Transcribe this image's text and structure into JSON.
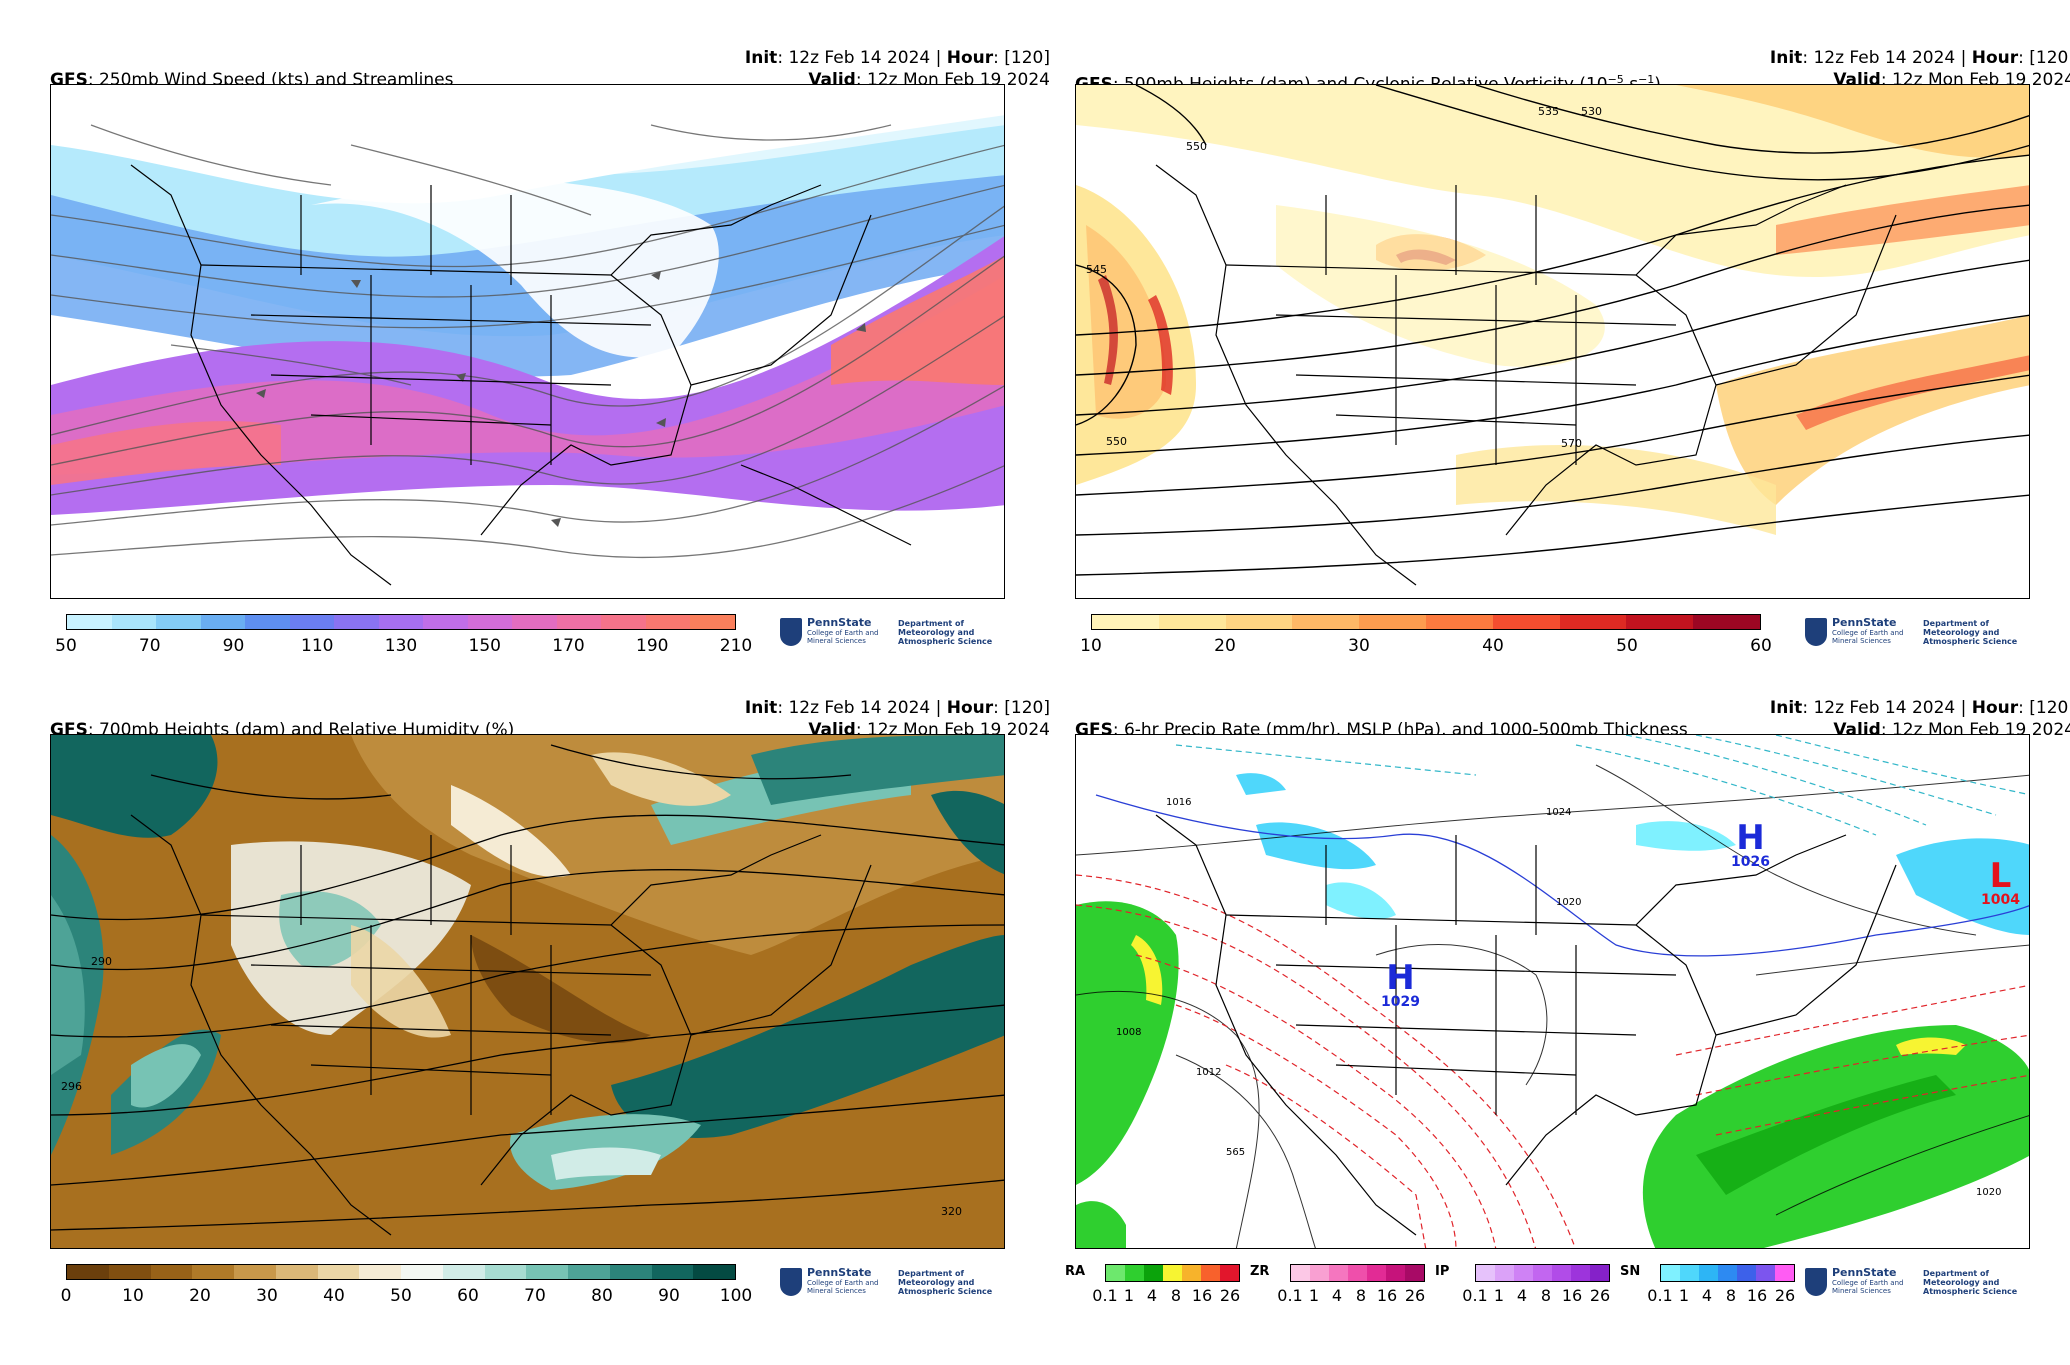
{
  "common": {
    "init_label": "Init",
    "init_value": ": 12z Feb 14 2024 | ",
    "hour_label": "Hour",
    "hour_value": ": [120]",
    "valid_label": "Valid",
    "valid_value": ": 12z Mon Feb 19 2024",
    "model": "GFS",
    "logo_name": "PennState",
    "logo_college": "College of Earth and Mineral Sciences",
    "logo_dept": "Department of Meteorology and Atmospheric Science"
  },
  "panels": [
    {
      "title": ": 250mb Wind Speed (kts) and Streamlines",
      "colorbar": {
        "ticks": [
          "50",
          "70",
          "90",
          "110",
          "130",
          "150",
          "170",
          "190",
          "210"
        ],
        "colors": [
          "#c8f2ff",
          "#a9e4fb",
          "#84ccf6",
          "#6aaef2",
          "#5e8ff0",
          "#6b7ef1",
          "#8a73f1",
          "#a66ff0",
          "#c06ee8",
          "#d36dd8",
          "#e36dc0",
          "#ef70a5",
          "#f5738a",
          "#f97870",
          "#fa7f5c"
        ]
      }
    },
    {
      "title": ": 500mb Heights (dam) and Cyclonic Relative Vorticity (10",
      "title_sup1": "−5",
      "title_mid": " s",
      "title_sup2": "−1",
      "title_end": ")",
      "colorbar": {
        "ticks": [
          "10",
          "20",
          "30",
          "40",
          "50",
          "60"
        ],
        "colors": [
          "#fff3b8",
          "#fee79a",
          "#fed482",
          "#feb866",
          "#fd9c4f",
          "#fc7a3f",
          "#f44d2f",
          "#de2a23",
          "#c2131f",
          "#9c0623"
        ]
      },
      "contour_labels": [
        "535",
        "530",
        "550",
        "545",
        "550",
        "570"
      ]
    },
    {
      "title": ": 700mb Heights (dam) and Relative Humidity (%)",
      "colorbar": {
        "ticks": [
          "0",
          "10",
          "20",
          "30",
          "40",
          "50",
          "60",
          "70",
          "80",
          "90",
          "100"
        ],
        "colors": [
          "#6b3f0c",
          "#814f10",
          "#986218",
          "#b07a28",
          "#c8984a",
          "#dbb878",
          "#ebd6a6",
          "#f5ebd4",
          "#f3f7f2",
          "#d1ece7",
          "#a7dcd1",
          "#77c3b4",
          "#4ea397",
          "#2c847a",
          "#12665e",
          "#044a42"
        ]
      },
      "contour_labels": [
        "290",
        "296",
        "320"
      ]
    },
    {
      "title": ": 6-hr Precip Rate (mm/hr), MSLP (hPa), and 1000-500mb Thickness",
      "legends": [
        {
          "label": "RA",
          "colors": [
            "#6de86d",
            "#2fcf2f",
            "#0ba30b",
            "#f7f432",
            "#f7b32b",
            "#f8612c",
            "#e2162c"
          ]
        },
        {
          "label": "ZR",
          "colors": [
            "#fcc8e6",
            "#f9a0d2",
            "#f576bf",
            "#ef4fab",
            "#e22b95",
            "#c6137b",
            "#a80a66"
          ]
        },
        {
          "label": "IP",
          "colors": [
            "#e6c2fb",
            "#dba2f8",
            "#cf82f5",
            "#c266f0",
            "#b14ce8",
            "#9d34dc",
            "#8521c9"
          ]
        },
        {
          "label": "SN",
          "colors": [
            "#7ff1ff",
            "#4fd7fb",
            "#2db5f5",
            "#2d8af2",
            "#3d61ea",
            "#7c55ee",
            "#ff5cf3"
          ]
        }
      ],
      "legend_ticks": [
        "0.1",
        "1",
        "4",
        "8",
        "16",
        "26"
      ],
      "highs": [
        {
          "letter": "H",
          "value": "1026"
        },
        {
          "letter": "H",
          "value": "1029"
        }
      ],
      "lows": [
        {
          "letter": "L",
          "value": "1004"
        }
      ],
      "contour_labels": [
        "1024",
        "1020",
        "1016",
        "1008",
        "1012",
        "565",
        "1020"
      ]
    }
  ]
}
